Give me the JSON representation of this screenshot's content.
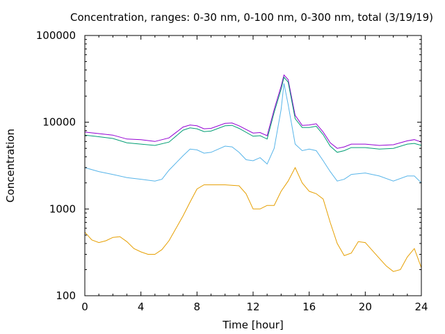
{
  "chart_data": {
    "type": "line",
    "title": "Concentration, ranges: 0-30 nm, 0-100 nm, 0-300 nm, total (3/19/19)",
    "xlabel": "Time [hour]",
    "ylabel": "Concentration",
    "xlim": [
      0,
      24
    ],
    "ylim": [
      100,
      100000
    ],
    "y_scale": "log",
    "x_ticks": [
      0,
      4,
      8,
      12,
      16,
      20,
      24
    ],
    "y_ticks": [
      100,
      1000,
      10000,
      100000
    ],
    "x_tick_labels": [
      "0",
      "4",
      "8",
      "12",
      "16",
      "20",
      "24"
    ],
    "y_tick_labels": [
      "100",
      "1000",
      "10000",
      "100000"
    ],
    "grid": false,
    "legend": "none",
    "series": [
      {
        "color": "#9400d3",
        "x": [
          0,
          1,
          2,
          3,
          4,
          5,
          6,
          7,
          7.5,
          8,
          8.5,
          9,
          10,
          10.5,
          11,
          12,
          12.5,
          13,
          13.5,
          14,
          14.2,
          14.5,
          15,
          15.5,
          16,
          16.5,
          17,
          17.5,
          18,
          18.5,
          19,
          20,
          21,
          22,
          23,
          23.5,
          24
        ],
        "y": [
          7700,
          7400,
          7100,
          6400,
          6300,
          6000,
          6600,
          8800,
          9300,
          9100,
          8400,
          8500,
          9700,
          9800,
          9100,
          7500,
          7600,
          7000,
          14000,
          26000,
          35000,
          31000,
          12000,
          9200,
          9300,
          9600,
          7700,
          5800,
          5000,
          5200,
          5600,
          5600,
          5400,
          5500,
          6100,
          6300,
          5900
        ]
      },
      {
        "color": "#009e73",
        "x": [
          0,
          1,
          2,
          3,
          4,
          5,
          6,
          7,
          7.5,
          8,
          8.5,
          9,
          10,
          10.5,
          11,
          12,
          12.5,
          13,
          13.5,
          14,
          14.2,
          14.5,
          15,
          15.5,
          16,
          16.5,
          17,
          17.5,
          18,
          18.5,
          19,
          20,
          21,
          22,
          23,
          23.5,
          24
        ],
        "y": [
          7100,
          6800,
          6500,
          5800,
          5600,
          5400,
          5900,
          8100,
          8600,
          8400,
          7800,
          7900,
          9100,
          9200,
          8500,
          6900,
          7000,
          6400,
          13000,
          24000,
          33000,
          29000,
          11000,
          8700,
          8700,
          9000,
          7200,
          5300,
          4500,
          4700,
          5100,
          5100,
          4900,
          5000,
          5600,
          5700,
          5400
        ]
      },
      {
        "color": "#56b4e9",
        "x": [
          0,
          1,
          2,
          3,
          4,
          5,
          5.5,
          6,
          7,
          7.5,
          8,
          8.5,
          9,
          10,
          10.5,
          11,
          11.5,
          12,
          12.5,
          13,
          13.5,
          14,
          14.2,
          14.5,
          15,
          15.5,
          16,
          16.5,
          17,
          17.5,
          18,
          18.5,
          19,
          20,
          21,
          22,
          23,
          23.5,
          24
        ],
        "y": [
          3000,
          2700,
          2500,
          2300,
          2200,
          2100,
          2200,
          2800,
          4100,
          4900,
          4800,
          4400,
          4500,
          5300,
          5200,
          4500,
          3700,
          3600,
          3900,
          3300,
          5000,
          14000,
          28000,
          16000,
          5600,
          4700,
          4900,
          4700,
          3600,
          2700,
          2100,
          2200,
          2500,
          2600,
          2400,
          2100,
          2400,
          2400,
          2000
        ]
      },
      {
        "color": "#e69f00",
        "x": [
          0,
          0.5,
          1,
          1.5,
          2,
          2.5,
          3,
          3.5,
          4,
          4.5,
          5,
          5.5,
          6,
          7,
          7.5,
          8,
          8.5,
          9,
          10,
          11,
          11.5,
          12,
          12.5,
          13,
          13.5,
          14,
          14.5,
          15,
          15.5,
          16,
          16.5,
          17,
          17.5,
          18,
          18.5,
          19,
          19.5,
          20,
          21,
          21.5,
          22,
          22.5,
          23,
          23.5,
          24
        ],
        "y": [
          540,
          440,
          410,
          430,
          470,
          480,
          420,
          350,
          320,
          300,
          300,
          340,
          430,
          830,
          1200,
          1700,
          1900,
          1900,
          1900,
          1850,
          1500,
          1000,
          1000,
          1100,
          1100,
          1600,
          2100,
          3000,
          2000,
          1600,
          1500,
          1300,
          700,
          400,
          290,
          310,
          420,
          410,
          270,
          220,
          190,
          200,
          280,
          350,
          210
        ]
      }
    ]
  }
}
